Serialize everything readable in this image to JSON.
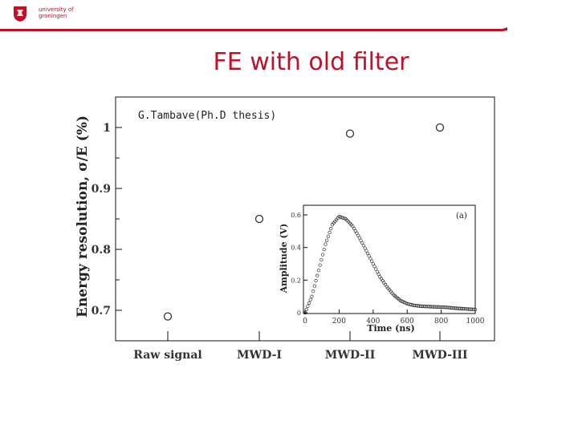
{
  "header": {
    "logo_icon": "lion-crest-icon",
    "brand_line1": "university of",
    "brand_line2": "groningen",
    "accent": "#c0102a"
  },
  "slide": {
    "title": "FE with old filter",
    "caption": "G.Tambave(Ph.D thesis)"
  },
  "chart_data": [
    {
      "type": "scatter",
      "title": "",
      "xlabel": "",
      "ylabel": "Energy resolution, σ/E (%)",
      "categories": [
        "Raw signal",
        "MWD-I",
        "MWD-II",
        "MWD-III"
      ],
      "values": [
        0.69,
        0.85,
        0.99,
        1.0
      ],
      "ylim": [
        0.65,
        1.05
      ],
      "yticks": [
        0.7,
        0.8,
        0.9,
        1
      ],
      "ytick_labels": [
        "0.7",
        "0.8",
        "0.9",
        "1"
      ],
      "marker": "open-circle",
      "grid": false
    },
    {
      "type": "scatter",
      "title": "",
      "annotation": "(a)",
      "xlabel": "Time (ns)",
      "ylabel": "Amplitude (V)",
      "xlim": [
        0,
        1000
      ],
      "ylim": [
        0,
        0.65
      ],
      "xticks": [
        0,
        200,
        400,
        600,
        800,
        1000
      ],
      "xtick_labels": [
        "0",
        "200",
        "400",
        "600",
        "800",
        "1000"
      ],
      "yticks": [
        0,
        0.2,
        0.4,
        0.6
      ],
      "ytick_labels": [
        "0",
        "0.2",
        "0.4",
        "0.6"
      ],
      "x": [
        0,
        40,
        80,
        120,
        160,
        200,
        240,
        280,
        320,
        360,
        400,
        440,
        480,
        520,
        560,
        600,
        640,
        680,
        720,
        760,
        800,
        840,
        880,
        920,
        960,
        1000
      ],
      "y": [
        0.0,
        0.1,
        0.26,
        0.42,
        0.54,
        0.59,
        0.575,
        0.53,
        0.46,
        0.38,
        0.3,
        0.22,
        0.16,
        0.11,
        0.075,
        0.055,
        0.045,
        0.04,
        0.038,
        0.036,
        0.035,
        0.032,
        0.028,
        0.025,
        0.022,
        0.02
      ],
      "marker": "open-circle",
      "grid": false
    }
  ]
}
